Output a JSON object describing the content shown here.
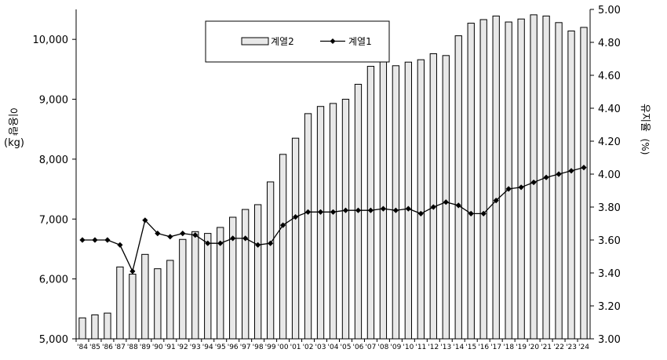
{
  "chart_data": {
    "type": "bar",
    "categories": [
      "'84",
      "'85",
      "'86",
      "'87",
      "'88",
      "'89",
      "'90",
      "'91",
      "'92",
      "'93",
      "'94",
      "'95",
      "'96",
      "'97",
      "'98",
      "'99",
      "'00",
      "'01",
      "'02",
      "'03",
      "'04",
      "'05",
      "'06",
      "'07",
      "'08",
      "'09",
      "'10",
      "'11",
      "'12",
      "'13",
      "'14",
      "'15",
      "'16",
      "'17",
      "'18",
      "'19",
      "'20",
      "'21",
      "'22",
      "'23",
      "'24"
    ],
    "series": [
      {
        "name": "계열2",
        "type": "bar",
        "axis": "left",
        "values": [
          5350,
          5400,
          5430,
          6200,
          6080,
          6410,
          6170,
          6310,
          6660,
          6790,
          6760,
          6860,
          7030,
          7160,
          7240,
          7620,
          8080,
          8350,
          8760,
          8880,
          8930,
          9000,
          9250,
          9550,
          9700,
          9560,
          9620,
          9660,
          9760,
          9730,
          10060,
          10270,
          10330,
          10390,
          10290,
          10340,
          10410,
          10390,
          10280,
          10140,
          10200
        ]
      },
      {
        "name": "계열1",
        "type": "line",
        "axis": "right",
        "values": [
          3.6,
          3.6,
          3.6,
          3.57,
          3.41,
          3.72,
          3.64,
          3.62,
          3.64,
          3.63,
          3.58,
          3.58,
          3.61,
          3.61,
          3.57,
          3.58,
          3.69,
          3.74,
          3.77,
          3.77,
          3.77,
          3.78,
          3.78,
          3.78,
          3.79,
          3.78,
          3.79,
          3.76,
          3.8,
          3.83,
          3.81,
          3.76,
          3.76,
          3.84,
          3.91,
          3.92,
          3.95,
          3.98,
          4.0,
          4.02,
          4.04
        ]
      }
    ],
    "left_axis": {
      "label": "이용량 (kg)",
      "label_line1": "이용량",
      "label_line2": "(kg)",
      "ylim": [
        5000,
        10500
      ],
      "ticks": [
        "5,000",
        "6,000",
        "7,000",
        "8,000",
        "9,000",
        "10,000"
      ],
      "tick_values": [
        5000,
        6000,
        7000,
        8000,
        9000,
        10000
      ]
    },
    "right_axis": {
      "label": "유지율 (%)",
      "label_line1": "유지율",
      "label_line2": "(%)",
      "ylim": [
        3.0,
        5.0
      ],
      "ticks": [
        "3.00",
        "3.20",
        "3.40",
        "3.60",
        "3.80",
        "4.00",
        "4.20",
        "4.40",
        "4.60",
        "4.80",
        "5.00"
      ],
      "tick_values": [
        3.0,
        3.2,
        3.4,
        3.6,
        3.8,
        4.0,
        4.2,
        4.4,
        4.6,
        4.8,
        5.0
      ]
    },
    "grid": false,
    "legend_position": "top-center",
    "colors": {
      "bar_fill": "#e8e8e8",
      "bar_stroke": "#000000",
      "line": "#000000"
    }
  }
}
